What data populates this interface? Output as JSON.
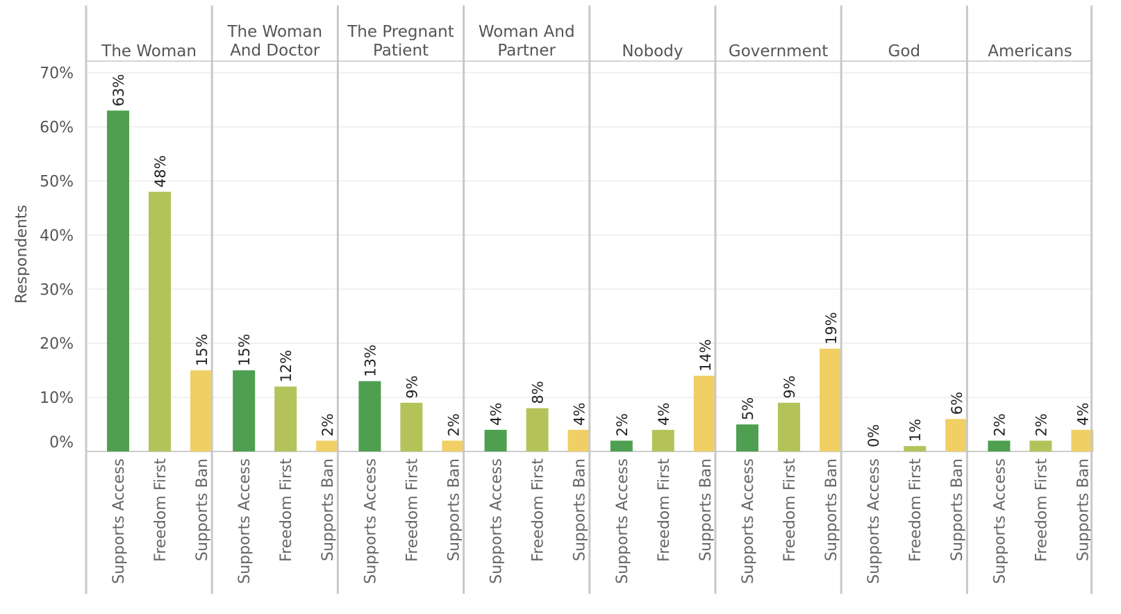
{
  "colors": {
    "Supports Access": "#4e9f50",
    "Freedom First": "#b3c35a",
    "Supports Ban": "#f0d064",
    "divider": "#c8c8c8",
    "grid": "#ececec"
  },
  "chart_data": {
    "type": "bar",
    "title": "",
    "xlabel": "",
    "ylabel": "Respondents",
    "ylim": [
      0,
      70
    ],
    "yticks": [
      0,
      10,
      20,
      30,
      40,
      50,
      60,
      70
    ],
    "ytick_labels": [
      "0%",
      "10%",
      "20%",
      "30%",
      "40%",
      "50%",
      "60%",
      "70%"
    ],
    "categories": [
      "Supports Access",
      "Freedom First",
      "Supports Ban"
    ],
    "groups": [
      {
        "title": [
          "The Woman"
        ],
        "values": [
          63,
          48,
          15
        ],
        "labels": [
          "63%",
          "48%",
          "15%"
        ]
      },
      {
        "title": [
          "The Woman",
          "And Doctor"
        ],
        "values": [
          15,
          12,
          2
        ],
        "labels": [
          "15%",
          "12%",
          "2%"
        ]
      },
      {
        "title": [
          "The Pregnant",
          "Patient"
        ],
        "values": [
          13,
          9,
          2
        ],
        "labels": [
          "13%",
          "9%",
          "2%"
        ]
      },
      {
        "title": [
          "Woman And",
          "Partner"
        ],
        "values": [
          4,
          8,
          4
        ],
        "labels": [
          "4%",
          "8%",
          "4%"
        ]
      },
      {
        "title": [
          "Nobody"
        ],
        "values": [
          2,
          4,
          14
        ],
        "labels": [
          "2%",
          "4%",
          "14%"
        ]
      },
      {
        "title": [
          "Government"
        ],
        "values": [
          5,
          9,
          19
        ],
        "labels": [
          "5%",
          "9%",
          "19%"
        ]
      },
      {
        "title": [
          "God"
        ],
        "values": [
          0,
          1,
          6
        ],
        "labels": [
          "0%",
          "1%",
          "6%"
        ]
      },
      {
        "title": [
          "Americans"
        ],
        "values": [
          2,
          2,
          4
        ],
        "labels": [
          "2%",
          "2%",
          "4%"
        ]
      }
    ]
  }
}
